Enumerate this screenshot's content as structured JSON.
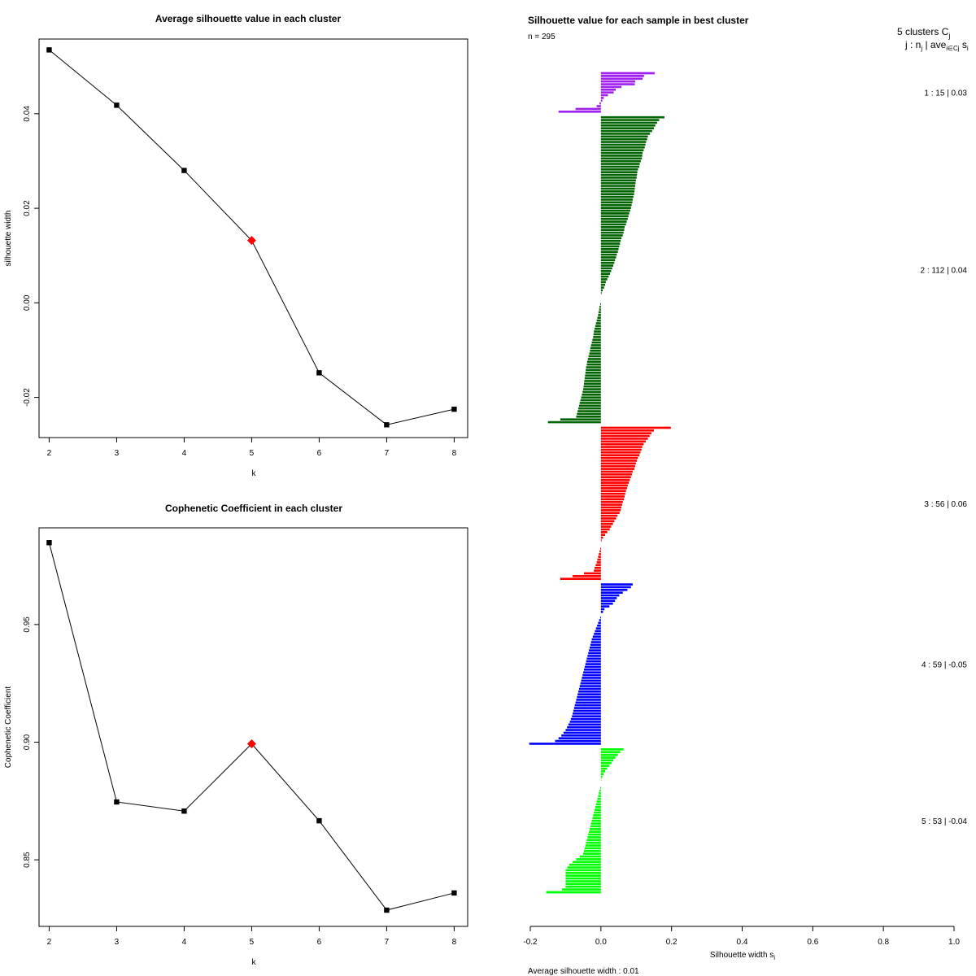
{
  "chart_data": [
    {
      "type": "line",
      "title": "Average silhouette value in each cluster",
      "xlabel": "k",
      "ylabel": "silhouette width",
      "x": [
        2,
        3,
        4,
        5,
        6,
        7,
        8
      ],
      "y": [
        0.0535,
        0.0418,
        0.028,
        0.0132,
        -0.0148,
        -0.0258,
        -0.0225
      ],
      "highlight": {
        "k": 5,
        "color": "#ff0000"
      },
      "xlim": [
        1.85,
        8.2
      ],
      "ylim": [
        -0.0285,
        0.0558
      ],
      "xticks": [
        2,
        3,
        4,
        5,
        6,
        7,
        8
      ],
      "yticks": [
        -0.02,
        0.0,
        0.02,
        0.04
      ],
      "ytick_labels": [
        "-0.02",
        "0.00",
        "0.02",
        "0.04"
      ]
    },
    {
      "type": "line",
      "title": "Cophenetic Coefficient in each cluster",
      "xlabel": "k",
      "ylabel": "Cophenetic Coefficient",
      "x": [
        2,
        3,
        4,
        5,
        6,
        7,
        8
      ],
      "y": [
        0.9848,
        0.8746,
        0.8707,
        0.8993,
        0.8666,
        0.8286,
        0.8359
      ],
      "highlight": {
        "k": 5,
        "color": "#ff0000"
      },
      "xlim": [
        1.85,
        8.2
      ],
      "ylim": [
        0.8217,
        0.9911
      ],
      "xticks": [
        2,
        3,
        4,
        5,
        6,
        7,
        8
      ],
      "yticks": [
        0.85,
        0.9,
        0.95
      ],
      "ytick_labels": [
        "0.85",
        "0.90",
        "0.95"
      ]
    },
    {
      "type": "bar",
      "orientation": "horizontal",
      "title": "Silhouette value for each sample in best cluster",
      "n_label": "n = 295",
      "xlabel": "Silhouette width s",
      "xlabel_sub": "i",
      "xlim": [
        -0.2,
        1.0
      ],
      "xticks": [
        -0.2,
        0.0,
        0.2,
        0.4,
        0.6,
        0.8,
        1.0
      ],
      "xtick_labels": [
        "-0.2",
        "0.0",
        "0.2",
        "0.4",
        "0.6",
        "0.8",
        "1.0"
      ],
      "header_line1": "5  clusters  C",
      "header_line1_sub": "j",
      "header_line2": "j :  n",
      "header_line2_sub": "j",
      "header_line2_b": " | ave",
      "header_line2_sub2": "i∈Cj",
      "header_line2_c": " s",
      "header_line2_sub3": "i",
      "footer": "Average silhouette width :  0.01",
      "clusters": [
        {
          "label": "1 :   15  |  0.03",
          "color": "#a020f0",
          "values": [
            0.152,
            0.122,
            0.118,
            0.097,
            0.096,
            0.058,
            0.042,
            0.036,
            0.02,
            0.008,
            0.004,
            -0.004,
            -0.012,
            -0.072,
            -0.12
          ]
        },
        {
          "label": "2 :   112  |  0.04",
          "color": "#006400",
          "values": [
            0.18,
            0.165,
            0.159,
            0.154,
            0.15,
            0.145,
            0.139,
            0.133,
            0.131,
            0.128,
            0.126,
            0.124,
            0.121,
            0.118,
            0.117,
            0.116,
            0.113,
            0.11,
            0.109,
            0.105,
            0.103,
            0.102,
            0.101,
            0.099,
            0.098,
            0.097,
            0.096,
            0.095,
            0.094,
            0.092,
            0.09,
            0.089,
            0.087,
            0.085,
            0.083,
            0.08,
            0.078,
            0.076,
            0.073,
            0.071,
            0.067,
            0.066,
            0.064,
            0.062,
            0.058,
            0.056,
            0.054,
            0.052,
            0.05,
            0.048,
            0.045,
            0.043,
            0.04,
            0.038,
            0.035,
            0.032,
            0.029,
            0.026,
            0.022,
            0.018,
            0.014,
            0.012,
            0.009,
            0.005,
            0.002,
            0.0,
            0.0,
            0.0,
            -0.002,
            -0.004,
            -0.005,
            -0.007,
            -0.008,
            -0.01,
            -0.012,
            -0.014,
            -0.016,
            -0.018,
            -0.02,
            -0.021,
            -0.022,
            -0.024,
            -0.026,
            -0.028,
            -0.03,
            -0.031,
            -0.033,
            -0.035,
            -0.037,
            -0.039,
            -0.04,
            -0.042,
            -0.043,
            -0.044,
            -0.045,
            -0.046,
            -0.047,
            -0.048,
            -0.049,
            -0.05,
            -0.052,
            -0.054,
            -0.056,
            -0.058,
            -0.06,
            -0.062,
            -0.064,
            -0.066,
            -0.068,
            -0.07,
            -0.115,
            -0.15
          ]
        },
        {
          "label": "3 :   56  |  0.06",
          "color": "#ff0000",
          "values": [
            0.198,
            0.15,
            0.143,
            0.138,
            0.133,
            0.127,
            0.121,
            0.117,
            0.115,
            0.112,
            0.109,
            0.105,
            0.102,
            0.099,
            0.097,
            0.095,
            0.09,
            0.088,
            0.085,
            0.082,
            0.079,
            0.076,
            0.074,
            0.071,
            0.069,
            0.067,
            0.065,
            0.062,
            0.06,
            0.058,
            0.056,
            0.053,
            0.047,
            0.043,
            0.038,
            0.034,
            0.029,
            0.025,
            0.018,
            0.012,
            0.006,
            0.002,
            0.0,
            0.0,
            -0.002,
            -0.004,
            -0.006,
            -0.008,
            -0.01,
            -0.012,
            -0.015,
            -0.018,
            -0.02,
            -0.048,
            -0.08,
            -0.115
          ]
        },
        {
          "label": "4 :   59  |  -0.05",
          "color": "#0000ff",
          "values": [
            0.09,
            0.085,
            0.075,
            0.062,
            0.052,
            0.045,
            0.04,
            0.034,
            0.024,
            0.01,
            0.006,
            0.0,
            -0.002,
            -0.005,
            -0.008,
            -0.011,
            -0.014,
            -0.017,
            -0.02,
            -0.023,
            -0.026,
            -0.028,
            -0.03,
            -0.032,
            -0.034,
            -0.036,
            -0.038,
            -0.04,
            -0.042,
            -0.044,
            -0.046,
            -0.048,
            -0.05,
            -0.052,
            -0.054,
            -0.056,
            -0.058,
            -0.06,
            -0.062,
            -0.064,
            -0.066,
            -0.068,
            -0.07,
            -0.072,
            -0.074,
            -0.076,
            -0.078,
            -0.08,
            -0.082,
            -0.085,
            -0.088,
            -0.092,
            -0.096,
            -0.1,
            -0.106,
            -0.112,
            -0.12,
            -0.13,
            -0.203
          ]
        },
        {
          "label": "5 :   53  |  -0.04",
          "color": "#00ff00",
          "values": [
            0.064,
            0.055,
            0.048,
            0.041,
            0.035,
            0.03,
            0.024,
            0.018,
            0.012,
            0.008,
            0.004,
            0.001,
            0.0,
            0.0,
            -0.002,
            -0.004,
            -0.006,
            -0.008,
            -0.01,
            -0.012,
            -0.014,
            -0.016,
            -0.018,
            -0.02,
            -0.022,
            -0.024,
            -0.026,
            -0.028,
            -0.03,
            -0.032,
            -0.034,
            -0.036,
            -0.038,
            -0.04,
            -0.042,
            -0.044,
            -0.046,
            -0.048,
            -0.05,
            -0.06,
            -0.07,
            -0.08,
            -0.09,
            -0.095,
            -0.1,
            -0.1,
            -0.1,
            -0.1,
            -0.1,
            -0.1,
            -0.1,
            -0.11,
            -0.155
          ]
        }
      ]
    }
  ]
}
